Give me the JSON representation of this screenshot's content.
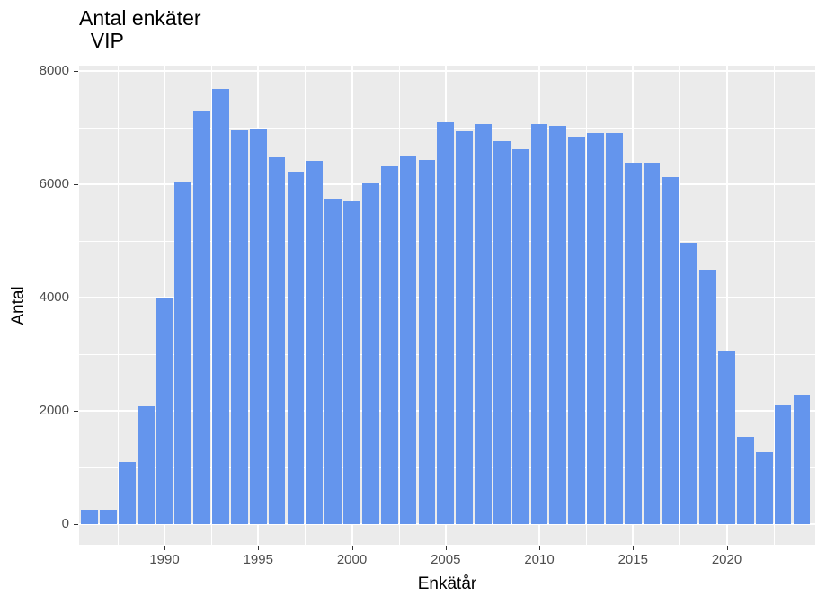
{
  "chart_data": {
    "type": "bar",
    "title": "Antal enkäter",
    "subtitle": "VIP",
    "xlabel": "Enkätår",
    "ylabel": "Antal",
    "ylim": [
      -400,
      8100
    ],
    "xlim": [
      1985.6,
      2024.5
    ],
    "grid": true,
    "legend": null,
    "bar_color": "#6495ED",
    "panel_background": "#EBEBEB",
    "x_ticks": [
      1990,
      1995,
      2000,
      2005,
      2010,
      2015,
      2020
    ],
    "y_ticks": [
      0,
      2000,
      4000,
      6000,
      8000
    ],
    "categories": [
      1986,
      1987,
      1988,
      1989,
      1990,
      1991,
      1992,
      1993,
      1994,
      1995,
      1996,
      1997,
      1998,
      1999,
      2000,
      2001,
      2002,
      2003,
      2004,
      2005,
      2006,
      2007,
      2008,
      2009,
      2010,
      2011,
      2012,
      2013,
      2014,
      2015,
      2016,
      2017,
      2018,
      2019,
      2020,
      2021,
      2022,
      2023,
      2024
    ],
    "values": [
      250,
      250,
      1100,
      2080,
      3990,
      6030,
      7300,
      7680,
      6950,
      6980,
      6480,
      6220,
      6410,
      5750,
      5700,
      6020,
      6320,
      6510,
      6430,
      7100,
      6940,
      7060,
      6760,
      6620,
      7060,
      7030,
      6840,
      6900,
      6900,
      6380,
      6380,
      6130,
      4970,
      4490,
      3060,
      1540,
      1270,
      2100,
      2290
    ]
  },
  "labels": {
    "title": "Antal enkäter\n  VIP",
    "xlabel": "Enkätår",
    "ylabel": "Antal"
  }
}
